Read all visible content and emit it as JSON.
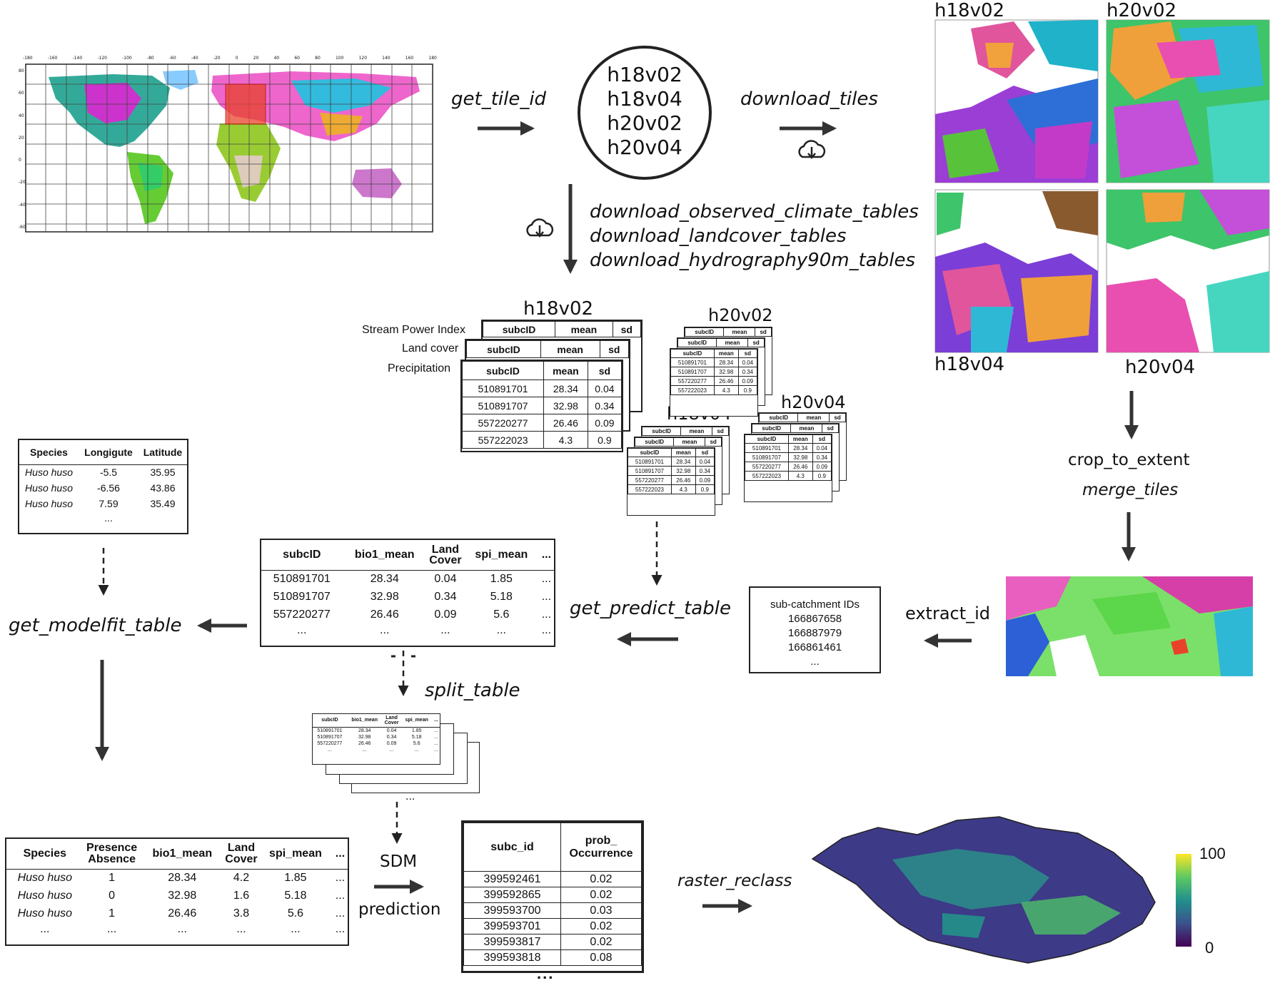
{
  "colors": {
    "ink": "#222222",
    "tile_red": "#e8432a",
    "ocean": "#ffffff",
    "viridis_top": "#fde725",
    "viridis_mid": "#21918c",
    "viridis_bottom": "#440154"
  },
  "map": {
    "lon_ticks": [
      "-180",
      "-160",
      "-140",
      "-120",
      "-100",
      "-80",
      "-60",
      "-40",
      "-20",
      "0",
      "20",
      "40",
      "60",
      "80",
      "100",
      "120",
      "140",
      "160",
      "180"
    ],
    "lat_ticks": [
      "80",
      "60",
      "40",
      "20",
      "0",
      "-20",
      "-40",
      "-60"
    ]
  },
  "steps": {
    "get_tile_id": "get_tile_id",
    "download_tiles": "download_tiles",
    "download_tables": [
      "download_observed_climate_tables",
      "download_landcover_tables",
      "download_hydrography90m_tables"
    ],
    "crop_to_extent": "crop_to_extent",
    "merge_tiles": "merge_tiles",
    "extract_id": "extract_id",
    "get_predict_table": "get_predict_table",
    "get_modelfit_table": "get_modelfit_table",
    "split_table": "split_table",
    "sdm": "SDM",
    "prediction": "prediction",
    "raster_reclass": "raster_reclass"
  },
  "tile_ids": [
    "h18v02",
    "h18v04",
    "h20v02",
    "h20v04"
  ],
  "tile_labels": {
    "a": "h18v02",
    "b": "h20v02",
    "c": "h18v04",
    "d": "h20v04"
  },
  "main_tiles": {
    "title": "h18v02",
    "row_labels": [
      "Stream Power Index",
      "Land cover",
      "Precipitation"
    ],
    "headers": [
      "subcID",
      "mean",
      "sd"
    ],
    "rows": [
      [
        "510891701",
        "28.34",
        "0.04"
      ],
      [
        "510891707",
        "32.98",
        "0.34"
      ],
      [
        "557220277",
        "26.46",
        "0.09"
      ],
      [
        "557222023",
        "4.3",
        "0.9"
      ]
    ]
  },
  "small_tiles": [
    {
      "title": "h20v02"
    },
    {
      "title": "h18v04"
    },
    {
      "title": "h20v04"
    }
  ],
  "species_table": {
    "headers": [
      "Species",
      "Longigute",
      "Latitude"
    ],
    "rows": [
      [
        "Huso huso",
        "-5.5",
        "35.95"
      ],
      [
        "Huso huso",
        "-6.56",
        "43.86"
      ],
      [
        "Huso huso",
        "7.59",
        "35.49"
      ]
    ],
    "ellipsis": "..."
  },
  "predict_table": {
    "headers": [
      "subcID",
      "bio1_mean",
      "Land Cover",
      "spi_mean",
      "..."
    ],
    "rows": [
      [
        "510891701",
        "28.34",
        "0.04",
        "1.85",
        "..."
      ],
      [
        "510891707",
        "32.98",
        "0.34",
        "5.18",
        "..."
      ],
      [
        "557220277",
        "26.46",
        "0.09",
        "5.6",
        "..."
      ],
      [
        "...",
        "...",
        "...",
        "...",
        "..."
      ]
    ]
  },
  "split_tables": {
    "headers": [
      "subcID",
      "bio1_mean",
      "Land Cover",
      "spi_mean",
      "..."
    ],
    "rows": [
      [
        "510891701",
        "28.34",
        "0.04",
        "1.85",
        "..."
      ],
      [
        "510891707",
        "32.98",
        "0.34",
        "5.18",
        "..."
      ],
      [
        "557220277",
        "26.46",
        "0.09",
        "5.6",
        "..."
      ],
      [
        "...",
        "...",
        "...",
        "...",
        "..."
      ]
    ],
    "more": "..."
  },
  "subcatchment_box": {
    "title": "sub-catchment IDs",
    "ids": [
      "166867658",
      "166887979",
      "166861461"
    ],
    "more": "..."
  },
  "modelfit_table": {
    "headers": [
      "Species",
      "Presence Absence",
      "bio1_mean",
      "Land Cover",
      "spi_mean",
      "..."
    ],
    "rows": [
      [
        "Huso huso",
        "1",
        "28.34",
        "4.2",
        "1.85",
        "..."
      ],
      [
        "Huso huso",
        "0",
        "32.98",
        "1.6",
        "5.18",
        "..."
      ],
      [
        "Huso huso",
        "1",
        "26.46",
        "3.8",
        "5.6",
        "..."
      ],
      [
        "...",
        "...",
        "...",
        "...",
        "...",
        "..."
      ]
    ]
  },
  "occurrence_table": {
    "headers": [
      "subc_id",
      "prob_ Occurrence"
    ],
    "rows": [
      [
        "399592461",
        "0.02"
      ],
      [
        "399592865",
        "0.02"
      ],
      [
        "399593700",
        "0.03"
      ],
      [
        "399593701",
        "0.02"
      ],
      [
        "399593817",
        "0.02"
      ],
      [
        "399593818",
        "0.08"
      ]
    ],
    "more": "..."
  },
  "legend": {
    "max": "100",
    "min": "0"
  }
}
